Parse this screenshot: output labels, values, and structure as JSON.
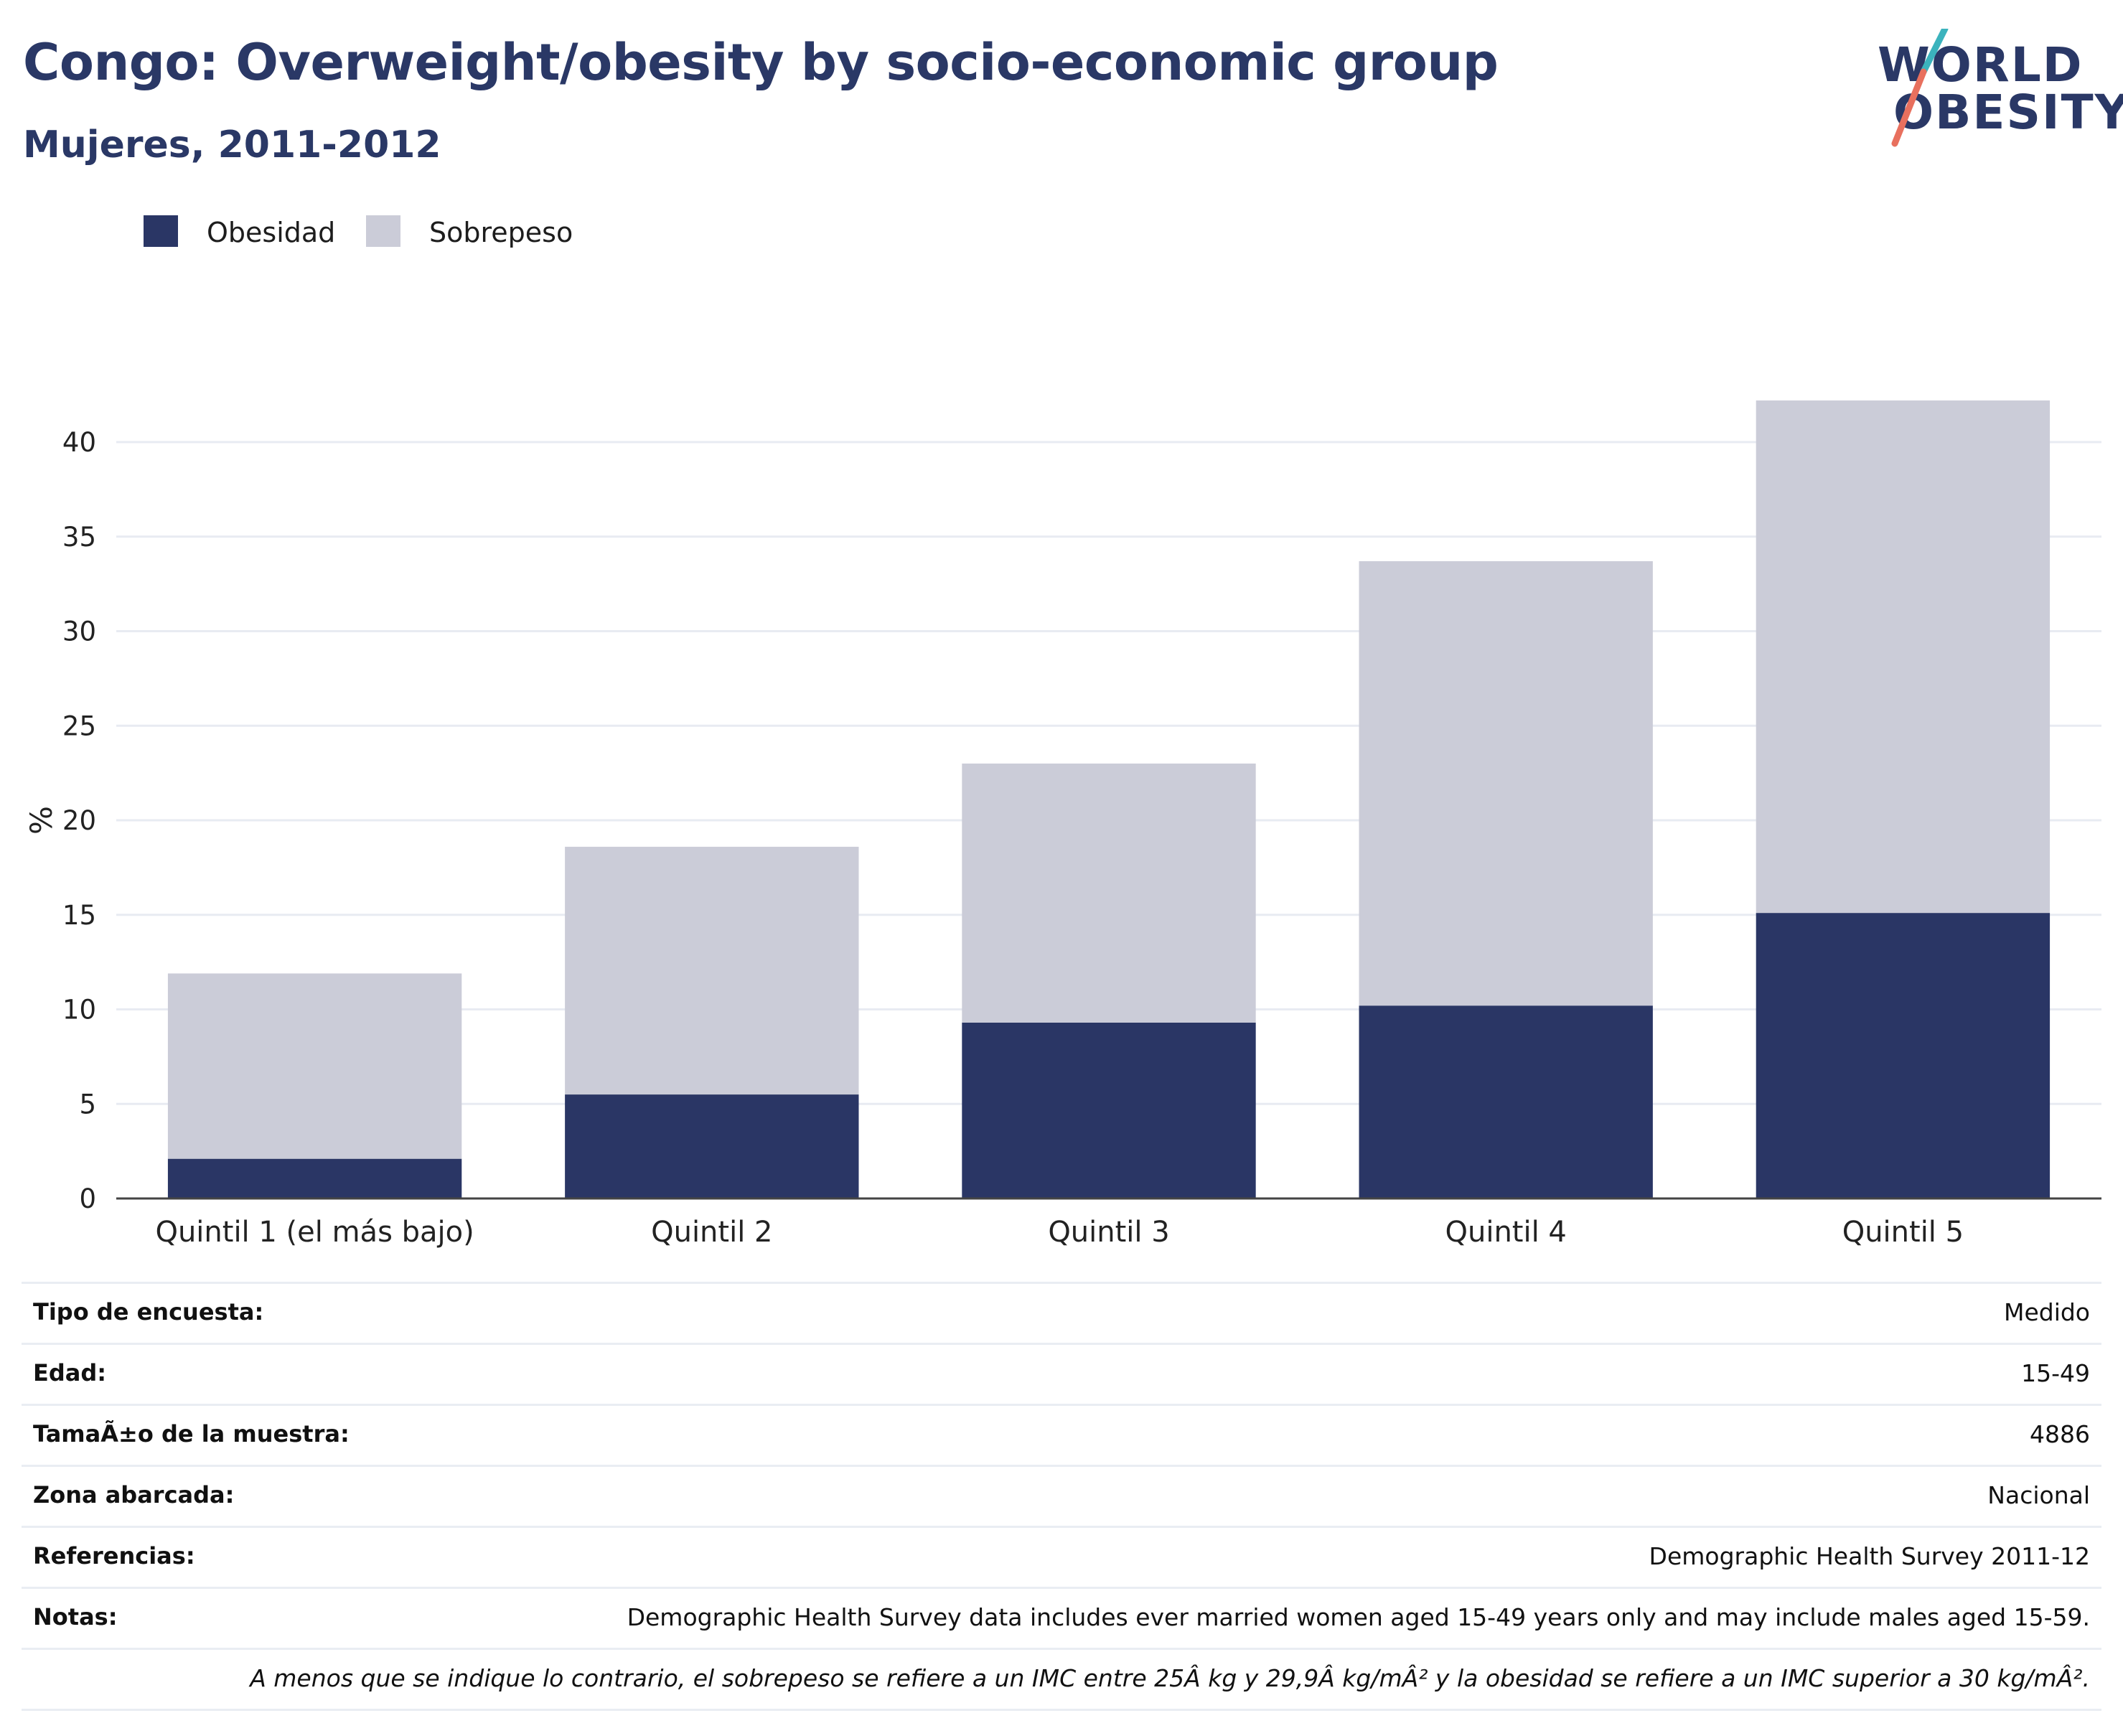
{
  "header": {
    "title": "Congo: Overweight/obesity by socio-economic group",
    "subtitle": "Mujeres, 2011-2012"
  },
  "logo": {
    "line1": "WORLD",
    "line2": "OBESITY",
    "colors": {
      "text": "#2a3866",
      "slash_top": "#3bb3bd",
      "slash_bottom": "#e8705e"
    }
  },
  "legend": {
    "items": [
      {
        "label": "Obesidad",
        "color": "#2a3665"
      },
      {
        "label": "Sobrepeso",
        "color": "#cbccd8"
      }
    ]
  },
  "chart_data": {
    "type": "bar",
    "stacked": true,
    "categories": [
      "Quintil 1 (el más bajo)",
      "Quintil 2",
      "Quintil 3",
      "Quintil 4",
      "Quintil 5"
    ],
    "series": [
      {
        "name": "Obesidad",
        "color": "#2a3665",
        "values": [
          2.1,
          5.5,
          9.3,
          10.2,
          15.1
        ]
      },
      {
        "name": "Sobrepeso",
        "color": "#cbccd8",
        "values": [
          9.8,
          13.1,
          13.7,
          23.5,
          27.1
        ]
      }
    ],
    "ylabel": "%",
    "xlabel": "",
    "ylim": [
      0,
      45
    ],
    "yticks": [
      0,
      5,
      10,
      15,
      20,
      25,
      30,
      35,
      40
    ],
    "grid": true,
    "legend_position": "top-left"
  },
  "info_table": {
    "rows": [
      {
        "label": "Tipo de encuesta:",
        "value": "Medido"
      },
      {
        "label": "Edad:",
        "value": "15-49"
      },
      {
        "label": "TamaÃ±o de la muestra:",
        "value": "4886"
      },
      {
        "label": "Zona abarcada:",
        "value": "Nacional"
      },
      {
        "label": "Referencias:",
        "value": "Demographic Health Survey 2011-12"
      },
      {
        "label": "Notas:",
        "value": "Demographic Health Survey data includes ever married women aged 15-49 years only and may include males aged 15-59."
      }
    ],
    "footnote": "A menos que se indique lo contrario, el sobrepeso se refiere a un IMC entre 25Â kg y 29,9Â kg/mÂ² y la obesidad se refiere a un IMC superior a 30 kg/mÂ²."
  }
}
